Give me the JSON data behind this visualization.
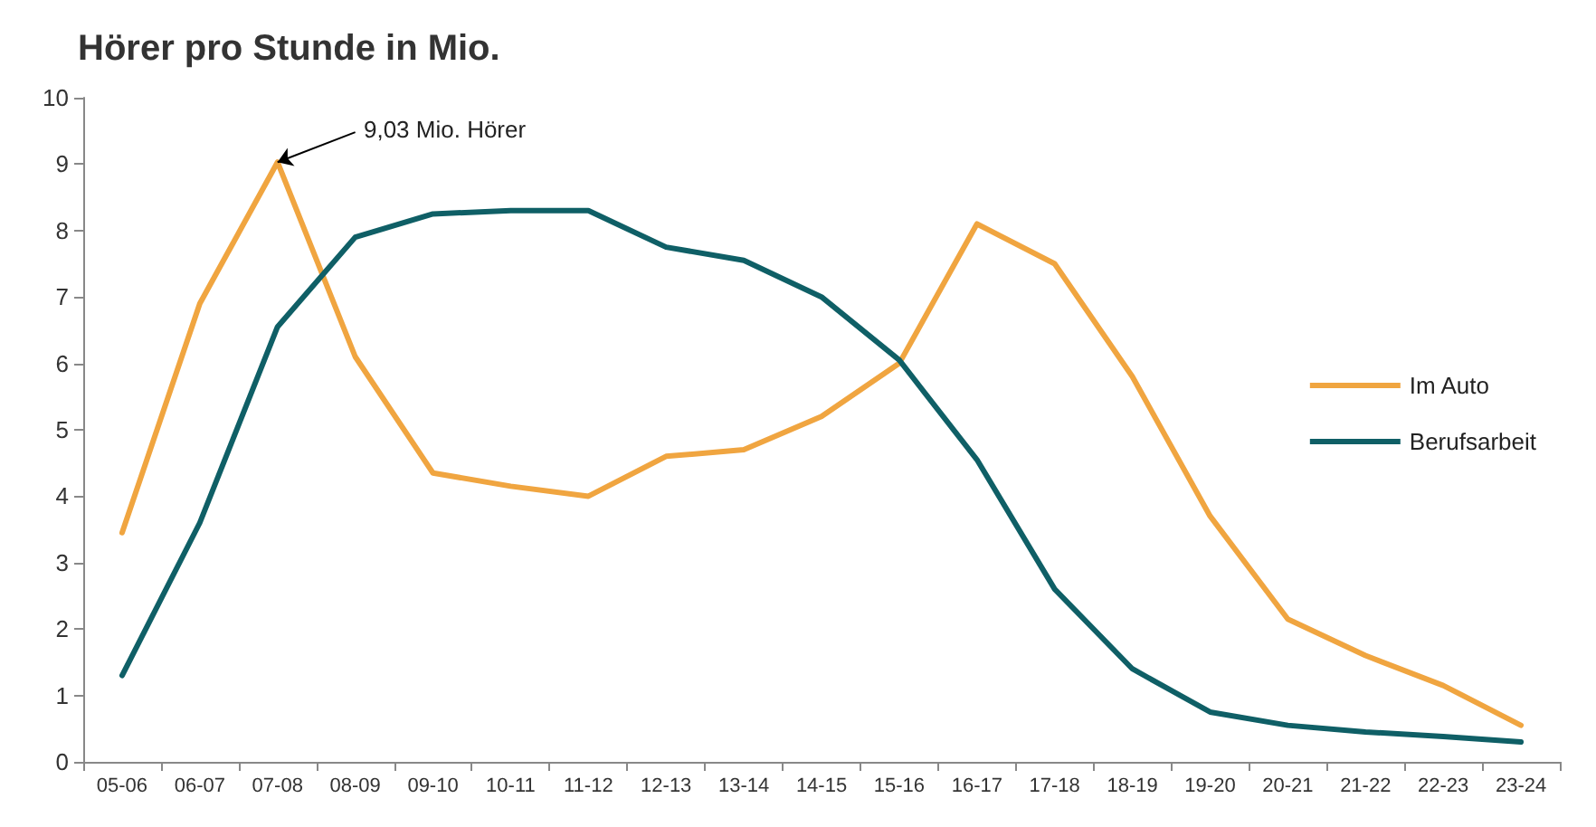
{
  "chart_data": {
    "type": "line",
    "title": "Hörer pro Stunde in Mio.",
    "categories": [
      "05-06",
      "06-07",
      "07-08",
      "08-09",
      "09-10",
      "10-11",
      "11-12",
      "12-13",
      "13-14",
      "14-15",
      "15-16",
      "16-17",
      "17-18",
      "18-19",
      "19-20",
      "20-21",
      "21-22",
      "22-23",
      "23-24"
    ],
    "series": [
      {
        "name": "Im Auto",
        "color": "#f0a540",
        "values": [
          3.45,
          6.9,
          9.03,
          6.1,
          4.35,
          4.15,
          4.0,
          4.6,
          4.7,
          5.2,
          6.0,
          8.1,
          7.5,
          5.8,
          3.7,
          2.15,
          1.6,
          1.15,
          0.55
        ]
      },
      {
        "name": "Berufsarbeit",
        "color": "#0f5f66",
        "values": [
          1.3,
          3.6,
          6.55,
          7.9,
          8.25,
          8.3,
          8.3,
          7.75,
          7.55,
          7.0,
          6.05,
          4.55,
          2.6,
          1.4,
          0.75,
          0.55,
          0.45,
          0.38,
          0.3
        ]
      }
    ],
    "ylim": [
      0,
      10
    ],
    "yticks": [
      0,
      1,
      2,
      3,
      4,
      5,
      6,
      7,
      8,
      9,
      10
    ],
    "grid": false,
    "legend": "right",
    "marker": "none",
    "line_style": "solid",
    "annotations": [
      {
        "text": "9,03 Mio. Hörer",
        "x": "07-08",
        "y": 9.03
      }
    ]
  }
}
